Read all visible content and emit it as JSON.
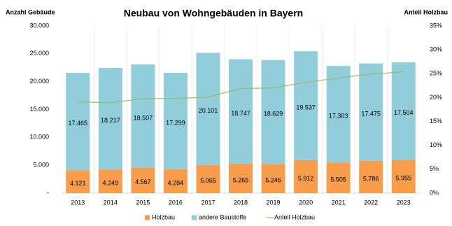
{
  "chart_data": {
    "type": "stacked-bar-line",
    "title": "Neubau von Wohngebäuden in Bayern",
    "y_label": "Anzahl Gebäude",
    "y2_label": "Anteil Holzbau",
    "categories": [
      "2013",
      "2014",
      "2015",
      "2016",
      "2017",
      "2018",
      "2019",
      "2020",
      "2021",
      "2022",
      "2023"
    ],
    "series": [
      {
        "name": "Holzbau",
        "color": "#f79d4b",
        "values": [
          4121,
          4249,
          4567,
          4284,
          5065,
          5265,
          5246,
          5912,
          5505,
          5786,
          5955
        ],
        "value_labels": [
          "4.121",
          "4.249",
          "4.567",
          "4.284",
          "5.065",
          "5.265",
          "5.246",
          "5.912",
          "5.505",
          "5.786",
          "5.955"
        ]
      },
      {
        "name": "andere Baustoffe",
        "color": "#92cddc",
        "values": [
          17465,
          18217,
          18507,
          17299,
          20101,
          18747,
          18629,
          19537,
          17303,
          17475,
          17504
        ],
        "value_labels": [
          "17.465",
          "18.217",
          "18.507",
          "17.299",
          "20.101",
          "18.747",
          "18.629",
          "19.537",
          "17.303",
          "17.475",
          "17.504"
        ]
      },
      {
        "name": "Anteil Holzbau",
        "color": "#9bbb59",
        "axis": "y2",
        "values": [
          19.1,
          18.9,
          19.8,
          19.8,
          20.1,
          21.9,
          22.0,
          23.2,
          24.1,
          24.9,
          25.4
        ]
      }
    ],
    "ylim": [
      0,
      30000
    ],
    "yticks": [
      {
        "value": 0,
        "label": "-"
      },
      {
        "value": 5000,
        "label": "5.000"
      },
      {
        "value": 10000,
        "label": "10.000"
      },
      {
        "value": 15000,
        "label": "15.000"
      },
      {
        "value": 20000,
        "label": "20.000"
      },
      {
        "value": 25000,
        "label": "25.000"
      },
      {
        "value": 30000,
        "label": "30.000"
      }
    ],
    "y2lim": [
      0,
      35
    ],
    "y2ticks": [
      {
        "value": 0,
        "label": "0%"
      },
      {
        "value": 5,
        "label": "5%"
      },
      {
        "value": 10,
        "label": "10%"
      },
      {
        "value": 15,
        "label": "15%"
      },
      {
        "value": 20,
        "label": "20%"
      },
      {
        "value": 25,
        "label": "25%"
      },
      {
        "value": 30,
        "label": "30%"
      },
      {
        "value": 35,
        "label": "35%"
      }
    ],
    "legend": "bottom"
  }
}
